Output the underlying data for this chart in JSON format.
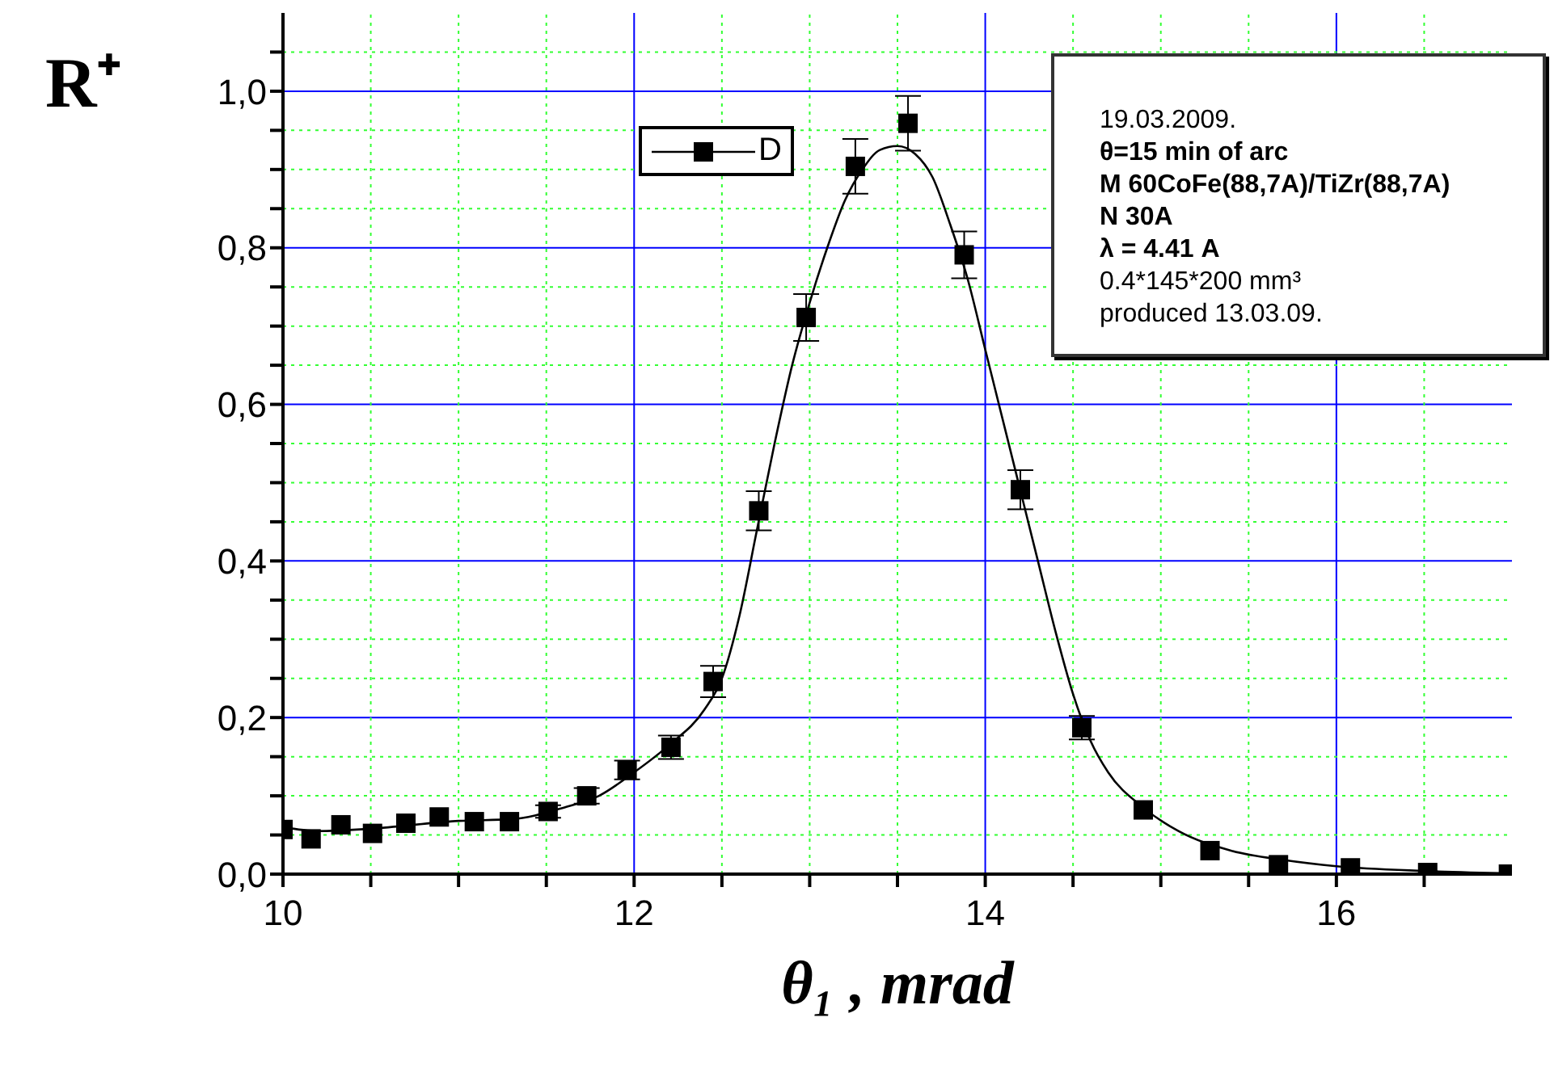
{
  "chart_data": {
    "type": "scatter",
    "xlabel": "θ₁ ,  mrad",
    "ylabel": "R⁺",
    "xlim": [
      10,
      17
    ],
    "xticks": [
      10,
      {
        "value": 10.5,
        "label": null
      },
      {
        "value": 11,
        "label": null
      },
      {
        "value": 11.5,
        "label": null
      },
      12,
      {
        "value": 12.5,
        "label": null
      },
      {
        "value": 13,
        "label": null
      },
      {
        "value": 13.5,
        "label": null
      },
      14,
      {
        "value": 14.5,
        "label": null
      },
      {
        "value": 15,
        "label": null
      },
      {
        "value": 15.5,
        "label": null
      },
      16,
      {
        "value": 16.5,
        "label": null
      }
    ],
    "ylim": [
      0,
      1.1
    ],
    "yticks": [
      {
        "value": 0,
        "label": "0,0"
      },
      {
        "value": 0.05,
        "label": null
      },
      {
        "value": 0.1,
        "label": null
      },
      {
        "value": 0.15,
        "label": null
      },
      {
        "value": 0.2,
        "label": "0,2"
      },
      {
        "value": 0.25,
        "label": null
      },
      {
        "value": 0.3,
        "label": null
      },
      {
        "value": 0.35,
        "label": null
      },
      {
        "value": 0.4,
        "label": "0,4"
      },
      {
        "value": 0.45,
        "label": null
      },
      {
        "value": 0.5,
        "label": null
      },
      {
        "value": 0.55,
        "label": null
      },
      {
        "value": 0.6,
        "label": "0,6"
      },
      {
        "value": 0.65,
        "label": null
      },
      {
        "value": 0.7,
        "label": null
      },
      {
        "value": 0.75,
        "label": null
      },
      {
        "value": 0.8,
        "label": "0,8"
      },
      {
        "value": 0.85,
        "label": null
      },
      {
        "value": 0.9,
        "label": null
      },
      {
        "value": 0.95,
        "label": null
      },
      {
        "value": 1.0,
        "label": "1,0"
      },
      {
        "value": 1.05,
        "label": null
      }
    ],
    "grid": true,
    "legend": "top left",
    "series": [
      {
        "name": "D",
        "color": "#000000",
        "marker": "square",
        "x": [
          10,
          10.16,
          10.33,
          10.51,
          10.7,
          10.89,
          11.09,
          11.29,
          11.51,
          11.73,
          11.96,
          12.21,
          12.45,
          12.71,
          12.98,
          13.26,
          13.56,
          13.88,
          14.2,
          14.55,
          14.9,
          15.28,
          15.67,
          16.08,
          16.52,
          16.98
        ],
        "values": [
          0.057,
          0.045,
          0.063,
          0.052,
          0.065,
          0.073,
          0.067,
          0.067,
          0.08,
          0.1,
          0.133,
          0.162,
          0.246,
          0.464,
          0.711,
          0.904,
          0.959,
          0.791,
          0.491,
          0.187,
          0.082,
          0.03,
          0.012,
          0.008,
          0.002,
          0
        ],
        "errors": [
          null,
          null,
          null,
          null,
          null,
          null,
          null,
          null,
          0.008,
          0.01,
          0.012,
          0.015,
          0.02,
          0.025,
          0.03,
          0.035,
          0.035,
          0.03,
          0.025,
          0.015,
          null,
          null,
          null,
          null,
          null,
          null
        ]
      },
      {
        "type": "line",
        "color": "#000000",
        "marker": "none",
        "line_style": "solid",
        "x": [
          10,
          10.2,
          10.5,
          11,
          11.3,
          11.6,
          11.8,
          12,
          12.2,
          12.4,
          12.5,
          12.6,
          12.7,
          12.8,
          12.9,
          13,
          13.1,
          13.2,
          13.3,
          13.4,
          13.5,
          13.6,
          13.7,
          13.8,
          13.9,
          14,
          14.1,
          14.2,
          14.3,
          14.4,
          14.5,
          14.6,
          14.7,
          14.9,
          15.1,
          15.4,
          15.7,
          16,
          16.5,
          17
        ],
        "values": [
          0.06,
          0.055,
          0.058,
          0.068,
          0.07,
          0.085,
          0.1,
          0.13,
          0.165,
          0.21,
          0.25,
          0.33,
          0.44,
          0.55,
          0.65,
          0.73,
          0.8,
          0.86,
          0.9,
          0.925,
          0.93,
          0.92,
          0.89,
          0.83,
          0.76,
          0.67,
          0.58,
          0.49,
          0.4,
          0.31,
          0.23,
          0.17,
          0.13,
          0.085,
          0.055,
          0.03,
          0.018,
          0.01,
          0.004,
          0.001
        ]
      }
    ],
    "annotations": [
      "19.03.2009.",
      "θ=15 min of arc",
      "M 60CoFe(88,7A)/TiZr(88,7A)",
      "N 30A",
      "λ = 4.41 A",
      "0.4*145*200 mm³",
      "produced 13.03.09."
    ]
  }
}
